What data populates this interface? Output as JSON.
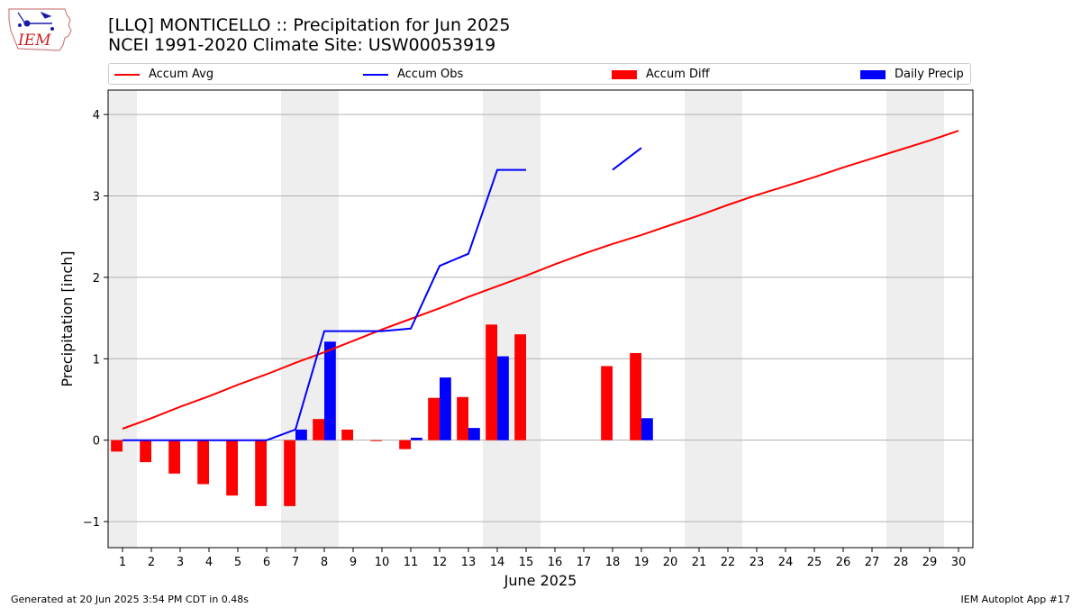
{
  "header": {
    "title_line1": "[LLQ] MONTICELLO :: Precipitation for Jun 2025",
    "title_line2": "NCEI 1991-2020 Climate Site: USW00053919"
  },
  "logo": {
    "text": "IEM"
  },
  "legend": {
    "items": [
      {
        "label": "Accum Avg",
        "color": "#ff0000",
        "kind": "line"
      },
      {
        "label": "Accum Obs",
        "color": "#0000ff",
        "kind": "line"
      },
      {
        "label": "Accum Diff",
        "color": "#ff0000",
        "kind": "bar"
      },
      {
        "label": "Daily Precip",
        "color": "#0000ff",
        "kind": "bar"
      }
    ]
  },
  "footer": {
    "left": "Generated at 20 Jun 2025 3:54 PM CDT in 0.48s",
    "right": "IEM Autoplot App #17"
  },
  "chart_data": {
    "type": "bar",
    "xlabel": "June 2025",
    "ylabel": "Precipitation [inch]",
    "ylim": [
      -1.32,
      4.3
    ],
    "yticks": [
      -1,
      0,
      1,
      2,
      3,
      4
    ],
    "ytick_labels": [
      "−1",
      "0",
      "1",
      "2",
      "3",
      "4"
    ],
    "grid": true,
    "legend_position": "top",
    "weekend_shading": [
      [
        1,
        1
      ],
      [
        7,
        8
      ],
      [
        14,
        15
      ],
      [
        21,
        22
      ],
      [
        28,
        29
      ]
    ],
    "x": [
      1,
      2,
      3,
      4,
      5,
      6,
      7,
      8,
      9,
      10,
      11,
      12,
      13,
      14,
      15,
      16,
      17,
      18,
      19,
      20,
      21,
      22,
      23,
      24,
      25,
      26,
      27,
      28,
      29,
      30
    ],
    "series": [
      {
        "name": "Accum Avg",
        "kind": "line",
        "color": "#ff0000",
        "values": [
          0.14,
          0.27,
          0.41,
          0.54,
          0.68,
          0.81,
          0.95,
          1.08,
          1.22,
          1.36,
          1.49,
          1.62,
          1.76,
          1.89,
          2.02,
          2.16,
          2.29,
          2.41,
          2.52,
          2.64,
          2.76,
          2.89,
          3.01,
          3.12,
          3.23,
          3.35,
          3.46,
          3.57,
          3.68,
          3.8
        ]
      },
      {
        "name": "Accum Obs",
        "kind": "line",
        "color": "#0000ff",
        "values": [
          0.0,
          0.0,
          0.0,
          0.0,
          0.0,
          0.0,
          0.13,
          1.34,
          1.34,
          1.34,
          1.37,
          2.14,
          2.29,
          3.32,
          3.32,
          null,
          null,
          3.32,
          3.59,
          null,
          null,
          null,
          null,
          null,
          null,
          null,
          null,
          null,
          null,
          null
        ]
      },
      {
        "name": "Accum Diff",
        "kind": "bar",
        "color": "#ff0000",
        "offset": -1,
        "values": [
          -0.14,
          -0.27,
          -0.41,
          -0.54,
          -0.68,
          -0.81,
          -0.81,
          0.26,
          0.13,
          -0.01,
          -0.11,
          0.52,
          0.53,
          1.42,
          1.3,
          null,
          null,
          0.91,
          1.07,
          null,
          null,
          null,
          null,
          null,
          null,
          null,
          null,
          null,
          null,
          null
        ]
      },
      {
        "name": "Daily Precip",
        "kind": "bar",
        "color": "#0000ff",
        "offset": 1,
        "values": [
          0,
          0,
          0,
          0,
          0,
          0,
          0.13,
          1.21,
          0,
          0,
          0.03,
          0.77,
          0.15,
          1.03,
          0,
          null,
          null,
          0,
          0.27,
          null,
          null,
          null,
          null,
          null,
          null,
          null,
          null,
          null,
          null,
          null
        ]
      }
    ]
  }
}
